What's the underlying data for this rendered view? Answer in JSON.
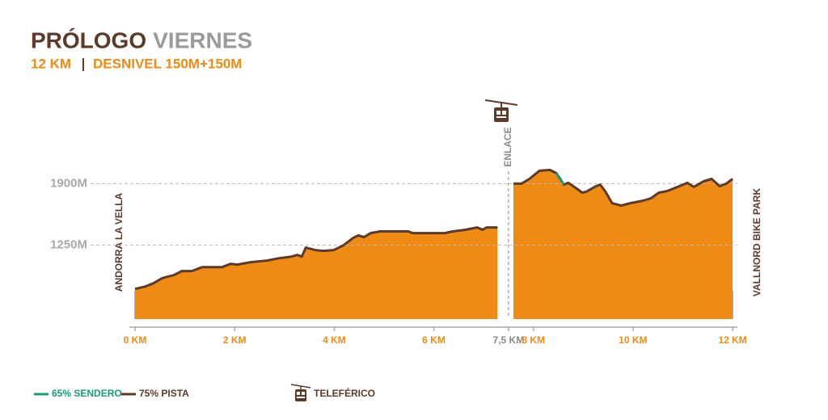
{
  "chart_data": {
    "type": "area",
    "title": [
      "PRÓLOGO",
      "VIERNES"
    ],
    "title_colors": [
      "#5b3a29",
      "#9a9a9a"
    ],
    "subtitle": {
      "distance": "12 KM",
      "elevation": "DESNIVEL 150M+150M"
    },
    "annotations": {
      "start": "ANDORRA LA VELLA",
      "end": "VALLNORD BIKE PARK",
      "cable_car": "TELEFÉRICO"
    },
    "enlace": {
      "label": "ENLACE",
      "x": 7.5,
      "color": "#8a8a8a"
    },
    "xlim": [
      0,
      12
    ],
    "ylim": [
      470,
      2100
    ],
    "xticks": [
      {
        "value": 0,
        "label": "0 KM"
      },
      {
        "value": 2,
        "label": "2 KM"
      },
      {
        "value": 4,
        "label": "4 KM"
      },
      {
        "value": 6,
        "label": "6 KM"
      },
      {
        "value": 7.5,
        "label": "7,5 KM"
      },
      {
        "value": 8,
        "label": "8 KM"
      },
      {
        "value": 10,
        "label": "10 KM"
      },
      {
        "value": 12,
        "label": "12 KM"
      }
    ],
    "yticks": [
      {
        "value": 1250,
        "label": "1250M"
      },
      {
        "value": 1900,
        "label": "1900M"
      }
    ],
    "grid": true,
    "fill": "#ef8a12",
    "series": [
      {
        "name": "75% PISTA",
        "color": "#5b3a29",
        "x": [
          0,
          0.21,
          0.37,
          0.54,
          0.65,
          0.78,
          0.94,
          1.14,
          1.35,
          1.75,
          1.92,
          2.05,
          2.32,
          2.65,
          2.89,
          3.14,
          3.26,
          3.35,
          3.43,
          3.62,
          3.78,
          3.99,
          4.19,
          4.38,
          4.48,
          4.6,
          4.73,
          4.92,
          5.08,
          5.49,
          5.57,
          6.22,
          6.38,
          6.63,
          6.87,
          6.98,
          7.06,
          7.28,
          7.5,
          7.6,
          7.76,
          7.92,
          8.12,
          8.33,
          8.46,
          8.54,
          8.61,
          8.7,
          8.82,
          8.98,
          9.06,
          9.23,
          9.34,
          9.44,
          9.58,
          9.76,
          9.95,
          10.2,
          10.36,
          10.52,
          10.69,
          10.93,
          11.09,
          11.22,
          11.42,
          11.58,
          11.74,
          11.87,
          12
        ],
        "values": [
          788,
          814,
          848,
          900,
          917,
          934,
          977,
          977,
          1019,
          1019,
          1054,
          1045,
          1071,
          1088,
          1113,
          1130,
          1148,
          1130,
          1225,
          1199,
          1190,
          1199,
          1250,
          1327,
          1353,
          1336,
          1378,
          1396,
          1396,
          1396,
          1378,
          1378,
          1396,
          1413,
          1438,
          1413,
          1438,
          1438,
          null,
          1900,
          1900,
          1951,
          2037,
          2045,
          2011,
          1951,
          1891,
          1909,
          1866,
          1806,
          1815,
          1866,
          1891,
          1823,
          1695,
          1669,
          1695,
          1720,
          1746,
          1806,
          1823,
          1874,
          1909,
          1866,
          1926,
          1951,
          1874,
          1900,
          1951
        ]
      },
      {
        "name": "65% SENDERO",
        "color": "#1a9a7a",
        "x": [
          8.46,
          8.54,
          8.61
        ],
        "values": [
          2011,
          1951,
          1891
        ]
      }
    ]
  }
}
